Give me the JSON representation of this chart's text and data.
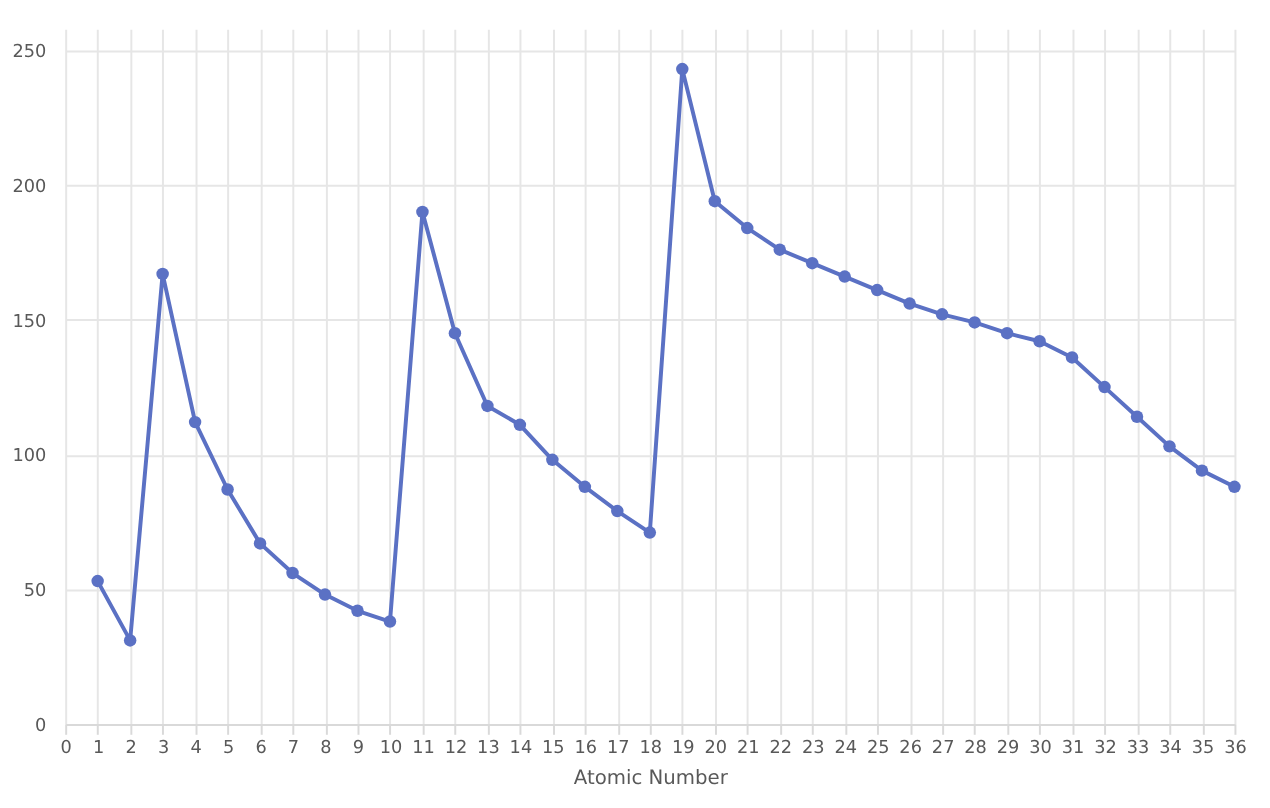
{
  "chart_data": {
    "type": "line",
    "xlabel": "Atomic Number",
    "x": [
      1,
      2,
      3,
      4,
      5,
      6,
      7,
      8,
      9,
      10,
      11,
      12,
      13,
      14,
      15,
      16,
      17,
      18,
      19,
      20,
      21,
      22,
      23,
      24,
      25,
      26,
      27,
      28,
      29,
      30,
      31,
      32,
      33,
      34,
      35,
      36
    ],
    "series": [
      {
        "color": "#5b71c4",
        "values": [
          53,
          31,
          167,
          112,
          87,
          67,
          56,
          48,
          42,
          38,
          190,
          145,
          118,
          111,
          98,
          88,
          79,
          71,
          243,
          194,
          184,
          176,
          171,
          166,
          161,
          156,
          152,
          149,
          145,
          142,
          136,
          125,
          114,
          103,
          94,
          88
        ]
      }
    ],
    "xlim": [
      0,
      36
    ],
    "xticks": [
      0,
      1,
      2,
      3,
      4,
      5,
      6,
      7,
      8,
      9,
      10,
      11,
      12,
      13,
      14,
      15,
      16,
      17,
      18,
      19,
      20,
      21,
      22,
      23,
      24,
      25,
      26,
      27,
      28,
      29,
      30,
      31,
      32,
      33,
      34,
      35,
      36
    ],
    "ylim": [
      0,
      258
    ],
    "yticks": [
      0,
      50,
      100,
      150,
      200,
      250
    ],
    "grid": true,
    "marker": "circle",
    "line_style": "solid"
  }
}
